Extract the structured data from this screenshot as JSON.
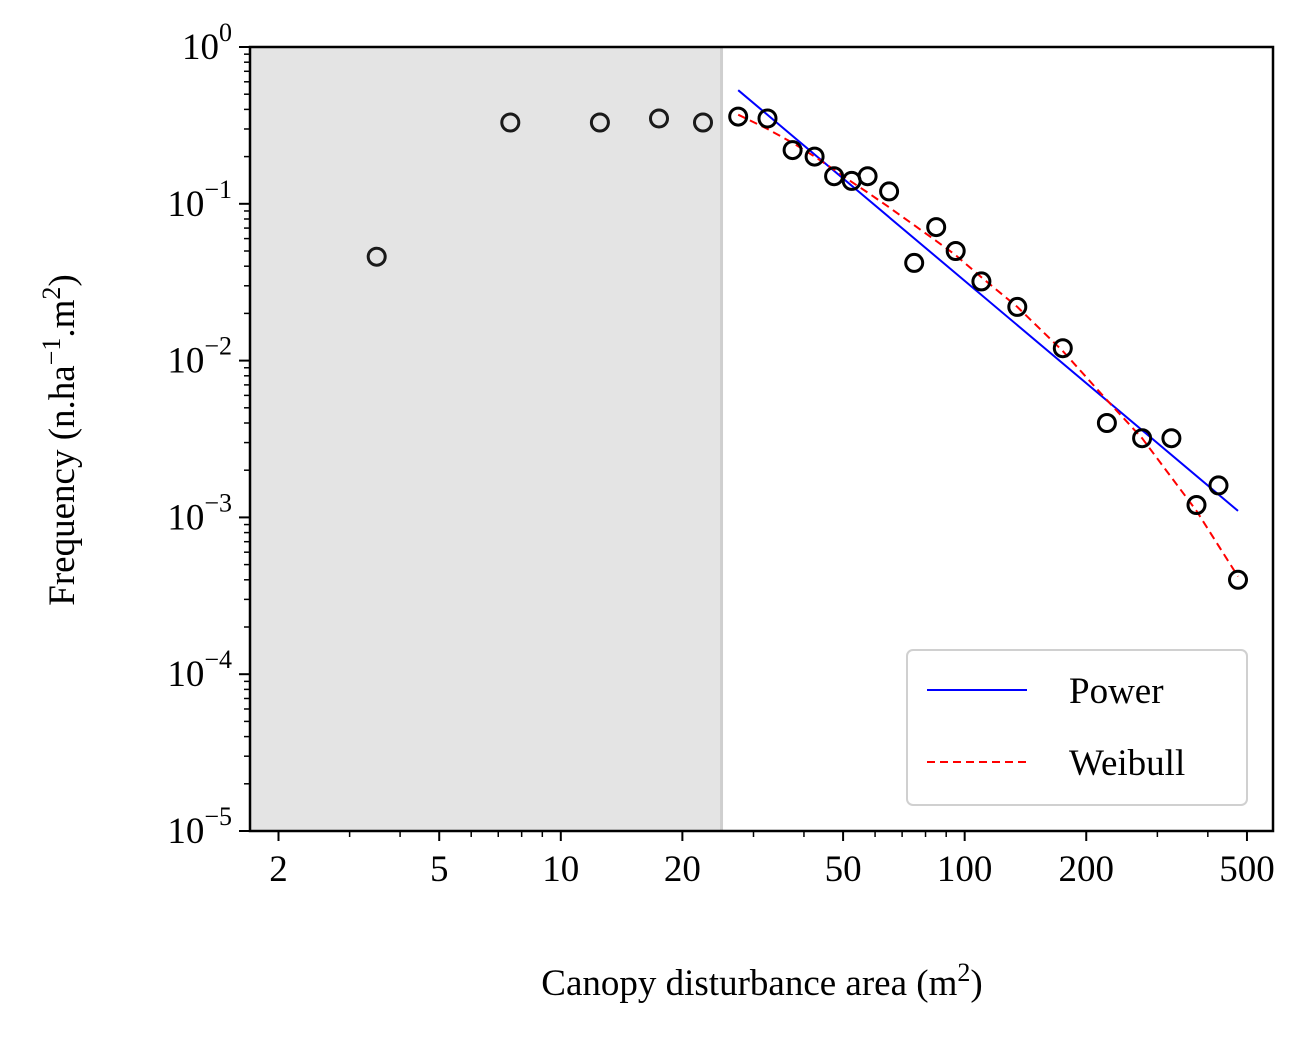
{
  "chart_data": {
    "type": "scatter",
    "xscale": "log",
    "yscale": "log",
    "xlim": [
      1.7,
      580
    ],
    "ylim": [
      1e-05,
      1
    ],
    "xlabel": {
      "main": "Canopy disturbance area (m",
      "sup": "2",
      "close": ")"
    },
    "ylabel": {
      "p1": "Frequency (n.ha",
      "sup1": "−1",
      "p2": ".m",
      "sup2": "2",
      "p3": ")"
    },
    "x_ticks": [
      {
        "value": 2,
        "label": "2"
      },
      {
        "value": 5,
        "label": "5"
      },
      {
        "value": 10,
        "label": "10"
      },
      {
        "value": 20,
        "label": "20"
      },
      {
        "value": 50,
        "label": "50"
      },
      {
        "value": 100,
        "label": "100"
      },
      {
        "value": 200,
        "label": "200"
      },
      {
        "value": 500,
        "label": "500"
      }
    ],
    "y_ticks": [
      {
        "value": 1,
        "base": "10",
        "exp": "0"
      },
      {
        "value": 0.1,
        "base": "10",
        "exp": "−1"
      },
      {
        "value": 0.01,
        "base": "10",
        "exp": "−2"
      },
      {
        "value": 0.001,
        "base": "10",
        "exp": "−3"
      },
      {
        "value": 0.0001,
        "base": "10",
        "exp": "−4"
      },
      {
        "value": 1e-05,
        "base": "10",
        "exp": "−5"
      }
    ],
    "shaded_region": {
      "x_from": 1.7,
      "x_to": 25,
      "color": "#e4e4e4"
    },
    "observations": {
      "x": [
        3.5,
        7.5,
        12.5,
        17.5,
        22.5,
        27.5,
        32.5,
        37.5,
        42.5,
        47.5,
        52.5,
        57.5,
        65,
        75,
        85,
        95,
        110,
        135,
        175,
        225,
        275,
        325,
        375,
        425,
        475
      ],
      "y": [
        0.046,
        0.33,
        0.33,
        0.35,
        0.33,
        0.36,
        0.35,
        0.22,
        0.2,
        0.15,
        0.14,
        0.15,
        0.12,
        0.042,
        0.071,
        0.05,
        0.032,
        0.022,
        0.012,
        0.004,
        0.0032,
        0.0032,
        0.0012,
        0.0016,
        0.0004
      ],
      "marker_color": "#1a1a1a",
      "dark_from_x": 25
    },
    "series": [
      {
        "name": "Power",
        "style": "solid",
        "color": "#0000ff",
        "x": [
          27.5,
          475
        ],
        "y": [
          0.53,
          0.0011
        ]
      },
      {
        "name": "Weibull",
        "style": "dashed",
        "color": "#ff0000",
        "x": [
          27.5,
          32.5,
          37.5,
          42.5,
          47.5,
          52.5,
          57.5,
          65,
          75,
          85,
          95,
          110,
          135,
          175,
          225,
          275,
          325,
          375,
          425,
          475
        ],
        "y": [
          0.37,
          0.3,
          0.245,
          0.2,
          0.165,
          0.138,
          0.118,
          0.095,
          0.073,
          0.058,
          0.047,
          0.034,
          0.022,
          0.0115,
          0.0056,
          0.0032,
          0.0018,
          0.0011,
          0.00066,
          0.00042
        ]
      }
    ],
    "legend": {
      "position": "lower-right"
    },
    "grid": false
  }
}
